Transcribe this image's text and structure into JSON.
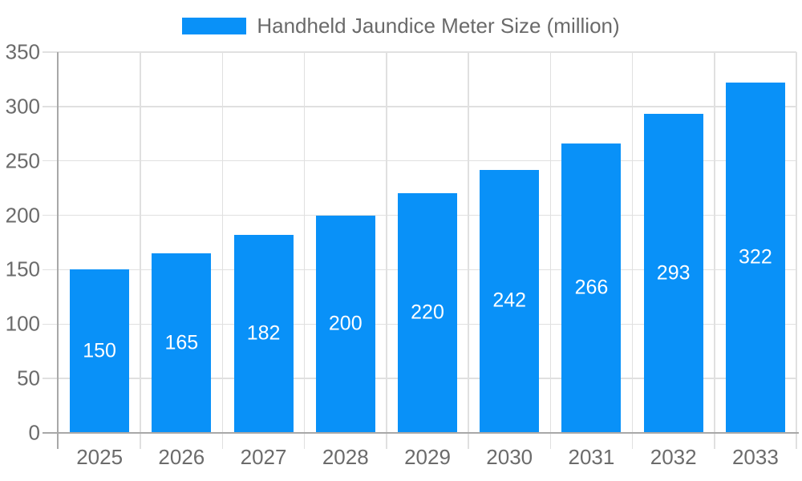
{
  "chart_data": {
    "type": "bar",
    "title": "Handheld Jaundice Meter Size (million)",
    "legend": {
      "position": "top",
      "label": "Handheld Jaundice Meter Size (million)"
    },
    "categories": [
      "2025",
      "2026",
      "2027",
      "2028",
      "2029",
      "2030",
      "2031",
      "2032",
      "2033"
    ],
    "values": [
      150,
      165,
      182,
      200,
      220,
      242,
      266,
      293,
      322
    ],
    "value_labels_visible": true,
    "xlabel": "",
    "ylabel": "",
    "ylim": [
      0,
      350
    ],
    "ytick_step": 50,
    "yticks": [
      0,
      50,
      100,
      150,
      200,
      250,
      300,
      350
    ],
    "grid": true,
    "colors": {
      "bar": "#0991f8",
      "value_label": "#ffffff",
      "gridline": "#e0e0e0",
      "axis_line": "#a8a8a8",
      "tick_label": "#6b6b6b",
      "legend_text": "#6a6a6a",
      "background": "#ffffff"
    }
  }
}
